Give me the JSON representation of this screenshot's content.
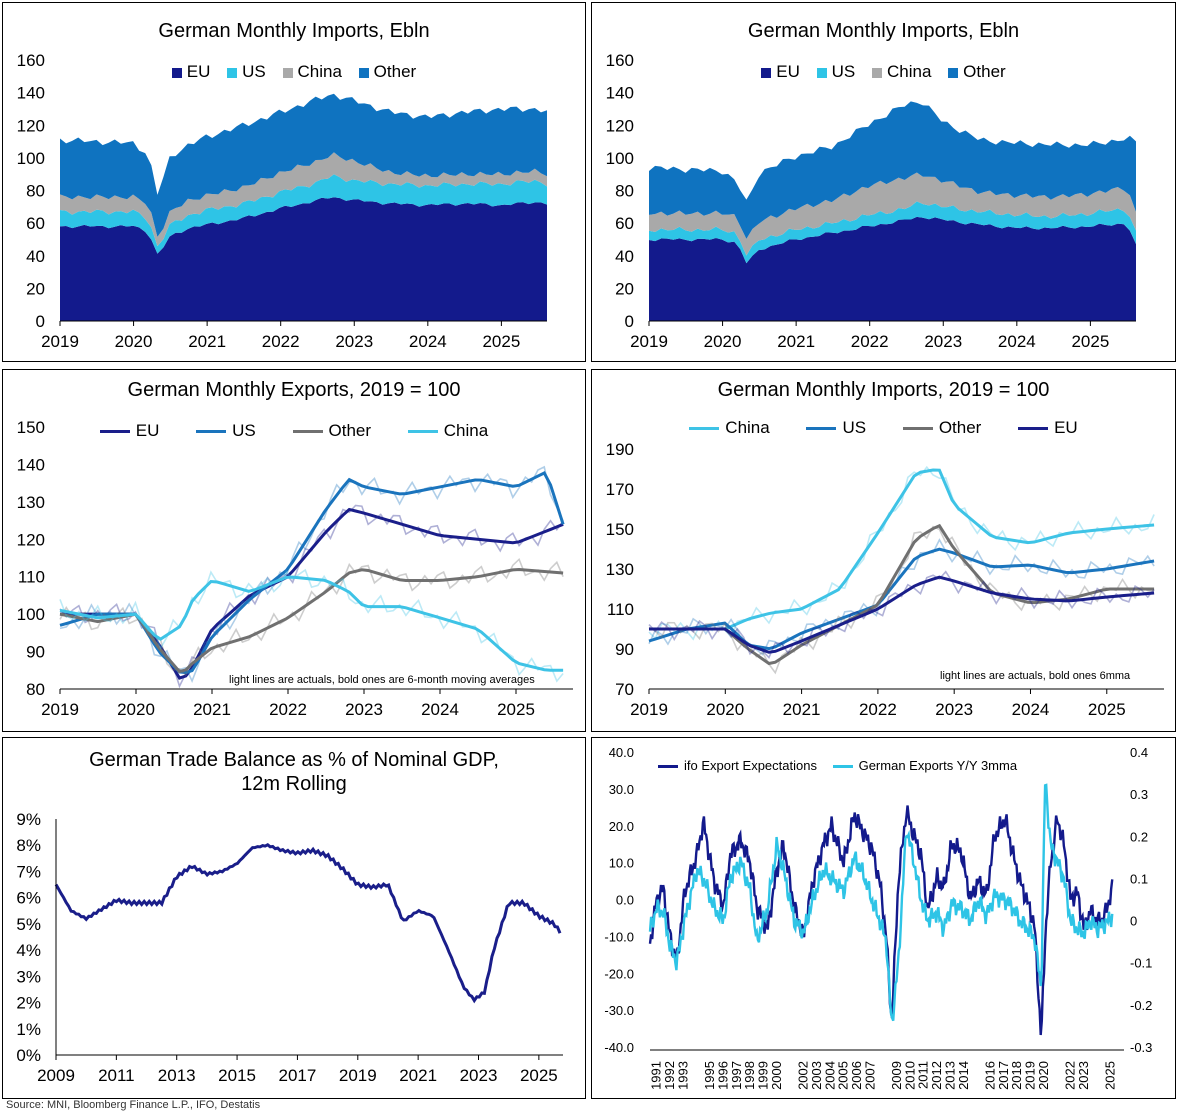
{
  "colors": {
    "eu": "#131a8c",
    "us": "#2ec4e6",
    "china": "#a9a9a9",
    "other": "#0f73c0",
    "exp_eu": "#1a1e8a",
    "exp_us": "#1a74bd",
    "exp_other": "#707070",
    "exp_china": "#3ec3e6"
  },
  "source_note": "Source: MNI, Bloomberg Finance L.P., IFO, Destatis",
  "chart_data": [
    {
      "type": "area",
      "title": "German Monthly Imports, Ebln",
      "legend": [
        "EU",
        "US",
        "China",
        "Other"
      ],
      "x_ticks": [
        "2019",
        "2020",
        "2021",
        "2022",
        "2023",
        "2024",
        "2025"
      ],
      "y_ticks": [
        "0",
        "20",
        "40",
        "60",
        "80",
        "100",
        "120",
        "140",
        "160"
      ],
      "ylim": [
        0,
        160
      ],
      "anchors": {
        "x": [
          2019.0,
          2019.5,
          2020.0,
          2020.2,
          2020.33,
          2020.5,
          2020.75,
          2021.0,
          2021.5,
          2022.0,
          2022.5,
          2022.7,
          2023.0,
          2023.5,
          2024.0,
          2024.5,
          2025.0,
          2025.5,
          2025.62
        ],
        "eu": [
          58,
          58,
          58,
          55,
          40,
          52,
          57,
          59,
          63,
          69,
          74,
          76,
          74,
          72,
          71,
          72,
          71,
          73,
          72
        ],
        "us": [
          9,
          9,
          9,
          8,
          5,
          7,
          8,
          9,
          9,
          10,
          11,
          13,
          12,
          12,
          12,
          12,
          13,
          13,
          12
        ],
        "china": [
          9,
          9,
          9,
          9,
          6,
          8,
          9,
          9,
          10,
          12,
          13,
          13,
          12,
          7,
          6,
          6,
          6,
          6,
          6
        ],
        "other": [
          35,
          34,
          33,
          30,
          26,
          34,
          34,
          36,
          38,
          37,
          38,
          37,
          37,
          37,
          36,
          38,
          40,
          38,
          38
        ]
      }
    },
    {
      "type": "area",
      "title": "German Monthly Imports, Ebln",
      "legend": [
        "EU",
        "US",
        "China",
        "Other"
      ],
      "x_ticks": [
        "2019",
        "2020",
        "2021",
        "2022",
        "2023",
        "2024",
        "2025"
      ],
      "y_ticks": [
        "0",
        "20",
        "40",
        "60",
        "80",
        "100",
        "120",
        "140",
        "160"
      ],
      "ylim": [
        0,
        160
      ],
      "anchors": {
        "x": [
          2019.0,
          2019.5,
          2020.0,
          2020.2,
          2020.33,
          2020.5,
          2020.75,
          2021.0,
          2021.5,
          2022.0,
          2022.5,
          2022.7,
          2023.0,
          2023.5,
          2024.0,
          2024.5,
          2025.0,
          2025.5,
          2025.62
        ],
        "eu": [
          50,
          50,
          50,
          48,
          35,
          44,
          47,
          50,
          54,
          58,
          62,
          64,
          62,
          59,
          57,
          57,
          58,
          60,
          46
        ],
        "us": [
          6,
          6,
          6,
          6,
          5,
          6,
          6,
          6,
          6,
          7,
          7,
          9,
          8,
          8,
          8,
          7,
          8,
          9,
          8
        ],
        "china": [
          10,
          10,
          10,
          10,
          10,
          11,
          12,
          13,
          14,
          18,
          19,
          17,
          16,
          12,
          12,
          12,
          12,
          13,
          12
        ],
        "other": [
          28,
          27,
          26,
          21,
          22,
          30,
          31,
          32,
          33,
          38,
          45,
          45,
          36,
          32,
          32,
          32,
          30,
          30,
          44
        ]
      }
    },
    {
      "type": "line",
      "title": "German Monthly Exports, 2019 = 100",
      "legend": [
        "EU",
        "US",
        "Other",
        "China"
      ],
      "x_ticks": [
        "2019",
        "2020",
        "2021",
        "2022",
        "2023",
        "2024",
        "2025"
      ],
      "y_ticks": [
        "80",
        "90",
        "100",
        "110",
        "120",
        "130",
        "140",
        "150"
      ],
      "ylim": [
        80,
        150
      ],
      "note": "light lines are actuals, bold ones are 6-month moving averages",
      "series": [
        {
          "name": "EU",
          "x": [
            2019,
            2019.5,
            2020,
            2020.3,
            2020.6,
            2020.75,
            2021,
            2021.5,
            2022,
            2022.5,
            2022.8,
            2023,
            2023.5,
            2024,
            2024.5,
            2025,
            2025.5,
            2025.62
          ],
          "values": [
            100,
            100,
            100,
            92,
            82,
            86,
            96,
            105,
            110,
            122,
            128,
            127,
            124,
            121,
            120,
            119,
            123,
            124
          ]
        },
        {
          "name": "US",
          "x": [
            2019,
            2019.5,
            2020,
            2020.3,
            2020.6,
            2020.75,
            2021,
            2021.5,
            2022,
            2022.5,
            2022.8,
            2023,
            2023.5,
            2024,
            2024.5,
            2025,
            2025.4,
            2025.62
          ],
          "values": [
            97,
            100,
            100,
            90,
            84,
            85,
            94,
            104,
            112,
            128,
            136,
            134,
            132,
            134,
            136,
            134,
            138,
            124
          ]
        },
        {
          "name": "Other",
          "x": [
            2019,
            2019.5,
            2020,
            2020.3,
            2020.6,
            2020.75,
            2021,
            2021.5,
            2022,
            2022.5,
            2022.8,
            2023,
            2023.5,
            2024,
            2024.5,
            2025,
            2025.62
          ],
          "values": [
            100,
            98,
            100,
            91,
            84,
            87,
            91,
            94,
            99,
            106,
            111,
            112,
            109,
            109,
            110,
            112,
            111
          ]
        },
        {
          "name": "China",
          "x": [
            2019,
            2019.5,
            2020,
            2020.3,
            2020.6,
            2020.75,
            2021,
            2021.5,
            2022,
            2022.5,
            2022.8,
            2023,
            2023.5,
            2024,
            2024.5,
            2025,
            2025.4,
            2025.62
          ],
          "values": [
            101,
            99,
            100,
            93,
            97,
            104,
            109,
            106,
            110,
            109,
            106,
            102,
            102,
            99,
            96,
            87,
            85,
            85
          ]
        }
      ]
    },
    {
      "type": "line",
      "title": "German Monthly Imports, 2019 = 100",
      "legend": [
        "China",
        "US",
        "Other",
        "EU"
      ],
      "x_ticks": [
        "2019",
        "2020",
        "2021",
        "2022",
        "2023",
        "2024",
        "2025"
      ],
      "y_ticks": [
        "70",
        "90",
        "110",
        "130",
        "150",
        "170",
        "190"
      ],
      "ylim": [
        70,
        190
      ],
      "note": "light lines are actuals, bold ones 6mma",
      "series": [
        {
          "name": "China",
          "x": [
            2019,
            2019.5,
            2020,
            2020.3,
            2020.6,
            2021,
            2021.5,
            2022,
            2022.5,
            2022.8,
            2023,
            2023.5,
            2024,
            2024.5,
            2025,
            2025.62
          ],
          "values": [
            100,
            100,
            100,
            105,
            108,
            110,
            120,
            148,
            178,
            180,
            162,
            146,
            143,
            148,
            150,
            152
          ]
        },
        {
          "name": "US",
          "x": [
            2019,
            2019.5,
            2020,
            2020.3,
            2020.6,
            2021,
            2021.5,
            2022,
            2022.5,
            2022.8,
            2023,
            2023.5,
            2024,
            2024.5,
            2025,
            2025.62
          ],
          "values": [
            94,
            100,
            103,
            92,
            90,
            98,
            105,
            112,
            136,
            140,
            138,
            131,
            132,
            128,
            130,
            134
          ]
        },
        {
          "name": "Other",
          "x": [
            2019,
            2019.5,
            2020,
            2020.3,
            2020.6,
            2021,
            2021.5,
            2022,
            2022.5,
            2022.8,
            2023,
            2023.5,
            2024,
            2024.5,
            2025,
            2025.62
          ],
          "values": [
            100,
            100,
            100,
            90,
            82,
            92,
            102,
            112,
            145,
            152,
            140,
            118,
            113,
            115,
            120,
            120
          ]
        },
        {
          "name": "EU",
          "x": [
            2019,
            2019.5,
            2020,
            2020.3,
            2020.6,
            2021,
            2021.5,
            2022,
            2022.5,
            2022.8,
            2023,
            2023.5,
            2024,
            2024.5,
            2025,
            2025.62
          ],
          "values": [
            100,
            100,
            100,
            92,
            88,
            94,
            102,
            110,
            122,
            126,
            124,
            118,
            115,
            114,
            116,
            118
          ]
        }
      ]
    },
    {
      "type": "line",
      "title": "German Trade Balance as % of Nominal GDP, 12m Rolling",
      "title_lines": [
        "German Trade Balance as % of Nominal GDP,",
        "12m Rolling"
      ],
      "x_ticks": [
        "2009",
        "2011",
        "2013",
        "2015",
        "2017",
        "2019",
        "2021",
        "2023",
        "2025"
      ],
      "y_ticks": [
        "0%",
        "1%",
        "2%",
        "3%",
        "4%",
        "5%",
        "6%",
        "7%",
        "8%",
        "9%"
      ],
      "ylim": [
        0,
        9
      ],
      "series": [
        {
          "name": "Trade Balance",
          "x": [
            2009,
            2009.5,
            2010,
            2011,
            2011.5,
            2012,
            2012.5,
            2013,
            2013.5,
            2014,
            2014.5,
            2015,
            2015.5,
            2016,
            2016.5,
            2017,
            2017.5,
            2018,
            2018.5,
            2019,
            2019.5,
            2020,
            2020.5,
            2021,
            2021.5,
            2022,
            2022.5,
            2022.85,
            2023.2,
            2023.5,
            2024,
            2024.5,
            2025,
            2025.5,
            2025.7
          ],
          "values": [
            6.5,
            5.5,
            5.2,
            5.9,
            5.8,
            5.8,
            5.8,
            6.8,
            7.2,
            6.9,
            7.0,
            7.3,
            7.9,
            8.0,
            7.8,
            7.7,
            7.8,
            7.6,
            7.1,
            6.5,
            6.4,
            6.5,
            5.1,
            5.5,
            5.3,
            4.0,
            2.6,
            2.1,
            2.4,
            4.0,
            5.8,
            5.8,
            5.3,
            5.0,
            4.7
          ]
        }
      ]
    },
    {
      "type": "line",
      "title": "",
      "legend": [
        "ifo Export Expectations",
        "German Exports Y/Y 3mma"
      ],
      "x_ticks": [
        "1991",
        "1992",
        "1993",
        "1995",
        "1996",
        "1997",
        "1998",
        "1999",
        "2000",
        "2002",
        "2003",
        "2004",
        "2005",
        "2006",
        "2007",
        "2009",
        "2010",
        "2011",
        "2012",
        "2013",
        "2014",
        "2016",
        "2017",
        "2018",
        "2019",
        "2020",
        "2022",
        "2023",
        "2025"
      ],
      "y_ticks": [
        "-40.0",
        "-30.0",
        "-20.0",
        "-10.0",
        "0.0",
        "10.0",
        "20.0",
        "30.0",
        "40.0"
      ],
      "y2_ticks": [
        "-0.3",
        "-0.2",
        "-0.1",
        "0",
        "0.1",
        "0.2",
        "0.3",
        "0.4"
      ],
      "ylim": [
        -40,
        40
      ],
      "y2lim": [
        -0.3,
        0.4
      ],
      "series": [
        {
          "name": "ifo Export Expectations",
          "axis": "left",
          "x": [
            1991,
            1991.5,
            1992,
            1992.5,
            1993,
            1993.6,
            1994.5,
            1995,
            1995.8,
            1996.5,
            1997,
            1997.8,
            1998.5,
            1999,
            1999.8,
            2000.5,
            2001,
            2001.8,
            2002.5,
            2003.2,
            2004,
            2004.6,
            2005.5,
            2006.3,
            2007,
            2007.6,
            2008.2,
            2008.7,
            2009.1,
            2009.6,
            2010.2,
            2010.7,
            2011.3,
            2011.8,
            2012.5,
            2013,
            2013.6,
            2014.3,
            2015,
            2015.6,
            2016.2,
            2016.8,
            2017.6,
            2018.2,
            2018.7,
            2019.3,
            2019.8,
            2020.3,
            2020.6,
            2021,
            2021.5,
            2022,
            2022.5,
            2023,
            2023.5,
            2024,
            2024.5,
            2025,
            2025.62
          ],
          "values": [
            -12,
            0,
            3,
            -10,
            -17,
            2,
            12,
            21,
            5,
            -2,
            12,
            16,
            10,
            -2,
            -8,
            8,
            15,
            -2,
            -10,
            5,
            15,
            20,
            10,
            23,
            18,
            14,
            5,
            -10,
            -34,
            5,
            24,
            18,
            12,
            -3,
            6,
            3,
            15,
            13,
            0,
            5,
            1,
            17,
            22,
            12,
            5,
            -1,
            -7,
            -38,
            -10,
            10,
            22,
            15,
            0,
            2,
            -8,
            -3,
            -6,
            -5,
            3
          ]
        },
        {
          "name": "German Exports Y/Y 3mma",
          "axis": "right",
          "x": [
            1991,
            1991.5,
            1992,
            1992.5,
            1993,
            1993.6,
            1994.5,
            1995,
            1995.8,
            1996.5,
            1997,
            1997.8,
            1998.5,
            1999,
            1999.8,
            2000.5,
            2001,
            2001.8,
            2002.5,
            2003.2,
            2004,
            2004.6,
            2005.5,
            2006.3,
            2007,
            2007.6,
            2008.2,
            2008.7,
            2009.1,
            2009.6,
            2010.2,
            2010.7,
            2011.3,
            2011.8,
            2012.5,
            2013,
            2013.6,
            2014.3,
            2015,
            2015.6,
            2016.2,
            2016.8,
            2017.6,
            2018.2,
            2018.7,
            2019.3,
            2019.8,
            2020.3,
            2020.6,
            2021,
            2021.5,
            2022,
            2022.5,
            2023,
            2023.5,
            2024,
            2024.5,
            2025,
            2025.62
          ],
          "values": [
            -0.02,
            0.03,
            0.02,
            -0.06,
            -0.1,
            0.0,
            0.12,
            0.1,
            0.03,
            0.0,
            0.1,
            0.14,
            0.07,
            -0.05,
            0.03,
            0.18,
            0.12,
            0.0,
            -0.03,
            0.05,
            0.12,
            0.1,
            0.07,
            0.15,
            0.11,
            0.05,
            0.0,
            -0.05,
            -0.25,
            -0.1,
            0.22,
            0.15,
            0.05,
            0.0,
            0.02,
            -0.02,
            0.04,
            0.03,
            0.0,
            0.05,
            0.01,
            0.06,
            0.05,
            0.03,
            0.0,
            -0.02,
            -0.04,
            -0.16,
            0.34,
            0.18,
            0.14,
            0.1,
            0.0,
            -0.02,
            -0.03,
            0.0,
            -0.02,
            -0.01,
            0.01
          ]
        }
      ]
    }
  ]
}
